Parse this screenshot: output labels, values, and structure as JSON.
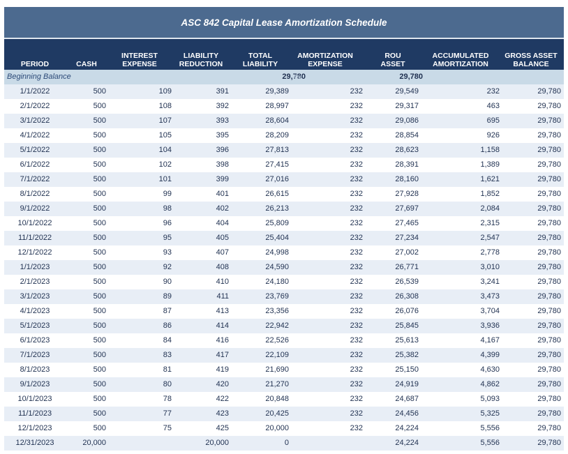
{
  "title": "ASC 842 Capital Lease Amortization Schedule",
  "headers": {
    "period": "PERIOD",
    "cash": "CASH",
    "interest_1": "INTEREST",
    "interest_2": "EXPENSE",
    "liability_1": "LIABILITY",
    "liability_2": "REDUCTION",
    "total_1": "TOTAL",
    "total_2": "LIABILITY",
    "amort_1": "AMORTIZATION",
    "amort_2": "EXPENSE",
    "rou_1": "ROU",
    "rou_2": "ASSET",
    "accum_1": "ACCUMULATED",
    "accum_2": "AMORTIZATION",
    "gross_1": "GROSS ASSET",
    "gross_2": "BALANCE"
  },
  "beginning": {
    "label": "Beginning Balance",
    "total": "29,780",
    "faint": "0%",
    "rou": "29,780"
  },
  "rows": [
    {
      "period": "1/1/2022",
      "cash": "500",
      "interest": "109",
      "reduction": "391",
      "total": "29,389",
      "amort": "232",
      "rou": "29,549",
      "accum": "232",
      "gross": "29,780"
    },
    {
      "period": "2/1/2022",
      "cash": "500",
      "interest": "108",
      "reduction": "392",
      "total": "28,997",
      "amort": "232",
      "rou": "29,317",
      "accum": "463",
      "gross": "29,780"
    },
    {
      "period": "3/1/2022",
      "cash": "500",
      "interest": "107",
      "reduction": "393",
      "total": "28,604",
      "amort": "232",
      "rou": "29,086",
      "accum": "695",
      "gross": "29,780"
    },
    {
      "period": "4/1/2022",
      "cash": "500",
      "interest": "105",
      "reduction": "395",
      "total": "28,209",
      "amort": "232",
      "rou": "28,854",
      "accum": "926",
      "gross": "29,780"
    },
    {
      "period": "5/1/2022",
      "cash": "500",
      "interest": "104",
      "reduction": "396",
      "total": "27,813",
      "amort": "232",
      "rou": "28,623",
      "accum": "1,158",
      "gross": "29,780"
    },
    {
      "period": "6/1/2022",
      "cash": "500",
      "interest": "102",
      "reduction": "398",
      "total": "27,415",
      "amort": "232",
      "rou": "28,391",
      "accum": "1,389",
      "gross": "29,780"
    },
    {
      "period": "7/1/2022",
      "cash": "500",
      "interest": "101",
      "reduction": "399",
      "total": "27,016",
      "amort": "232",
      "rou": "28,160",
      "accum": "1,621",
      "gross": "29,780"
    },
    {
      "period": "8/1/2022",
      "cash": "500",
      "interest": "99",
      "reduction": "401",
      "total": "26,615",
      "amort": "232",
      "rou": "27,928",
      "accum": "1,852",
      "gross": "29,780"
    },
    {
      "period": "9/1/2022",
      "cash": "500",
      "interest": "98",
      "reduction": "402",
      "total": "26,213",
      "amort": "232",
      "rou": "27,697",
      "accum": "2,084",
      "gross": "29,780"
    },
    {
      "period": "10/1/2022",
      "cash": "500",
      "interest": "96",
      "reduction": "404",
      "total": "25,809",
      "amort": "232",
      "rou": "27,465",
      "accum": "2,315",
      "gross": "29,780"
    },
    {
      "period": "11/1/2022",
      "cash": "500",
      "interest": "95",
      "reduction": "405",
      "total": "25,404",
      "amort": "232",
      "rou": "27,234",
      "accum": "2,547",
      "gross": "29,780"
    },
    {
      "period": "12/1/2022",
      "cash": "500",
      "interest": "93",
      "reduction": "407",
      "total": "24,998",
      "amort": "232",
      "rou": "27,002",
      "accum": "2,778",
      "gross": "29,780"
    },
    {
      "period": "1/1/2023",
      "cash": "500",
      "interest": "92",
      "reduction": "408",
      "total": "24,590",
      "amort": "232",
      "rou": "26,771",
      "accum": "3,010",
      "gross": "29,780"
    },
    {
      "period": "2/1/2023",
      "cash": "500",
      "interest": "90",
      "reduction": "410",
      "total": "24,180",
      "amort": "232",
      "rou": "26,539",
      "accum": "3,241",
      "gross": "29,780"
    },
    {
      "period": "3/1/2023",
      "cash": "500",
      "interest": "89",
      "reduction": "411",
      "total": "23,769",
      "amort": "232",
      "rou": "26,308",
      "accum": "3,473",
      "gross": "29,780"
    },
    {
      "period": "4/1/2023",
      "cash": "500",
      "interest": "87",
      "reduction": "413",
      "total": "23,356",
      "amort": "232",
      "rou": "26,076",
      "accum": "3,704",
      "gross": "29,780"
    },
    {
      "period": "5/1/2023",
      "cash": "500",
      "interest": "86",
      "reduction": "414",
      "total": "22,942",
      "amort": "232",
      "rou": "25,845",
      "accum": "3,936",
      "gross": "29,780"
    },
    {
      "period": "6/1/2023",
      "cash": "500",
      "interest": "84",
      "reduction": "416",
      "total": "22,526",
      "amort": "232",
      "rou": "25,613",
      "accum": "4,167",
      "gross": "29,780"
    },
    {
      "period": "7/1/2023",
      "cash": "500",
      "interest": "83",
      "reduction": "417",
      "total": "22,109",
      "amort": "232",
      "rou": "25,382",
      "accum": "4,399",
      "gross": "29,780"
    },
    {
      "period": "8/1/2023",
      "cash": "500",
      "interest": "81",
      "reduction": "419",
      "total": "21,690",
      "amort": "232",
      "rou": "25,150",
      "accum": "4,630",
      "gross": "29,780"
    },
    {
      "period": "9/1/2023",
      "cash": "500",
      "interest": "80",
      "reduction": "420",
      "total": "21,270",
      "amort": "232",
      "rou": "24,919",
      "accum": "4,862",
      "gross": "29,780"
    },
    {
      "period": "10/1/2023",
      "cash": "500",
      "interest": "78",
      "reduction": "422",
      "total": "20,848",
      "amort": "232",
      "rou": "24,687",
      "accum": "5,093",
      "gross": "29,780"
    },
    {
      "period": "11/1/2023",
      "cash": "500",
      "interest": "77",
      "reduction": "423",
      "total": "20,425",
      "amort": "232",
      "rou": "24,456",
      "accum": "5,325",
      "gross": "29,780"
    },
    {
      "period": "12/1/2023",
      "cash": "500",
      "interest": "75",
      "reduction": "425",
      "total": "20,000",
      "amort": "232",
      "rou": "24,224",
      "accum": "5,556",
      "gross": "29,780"
    },
    {
      "period": "12/31/2023",
      "cash": "20,000",
      "interest": "",
      "reduction": "20,000",
      "total": "0",
      "amort": "",
      "rou": "24,224",
      "accum": "5,556",
      "gross": "29,780"
    }
  ]
}
